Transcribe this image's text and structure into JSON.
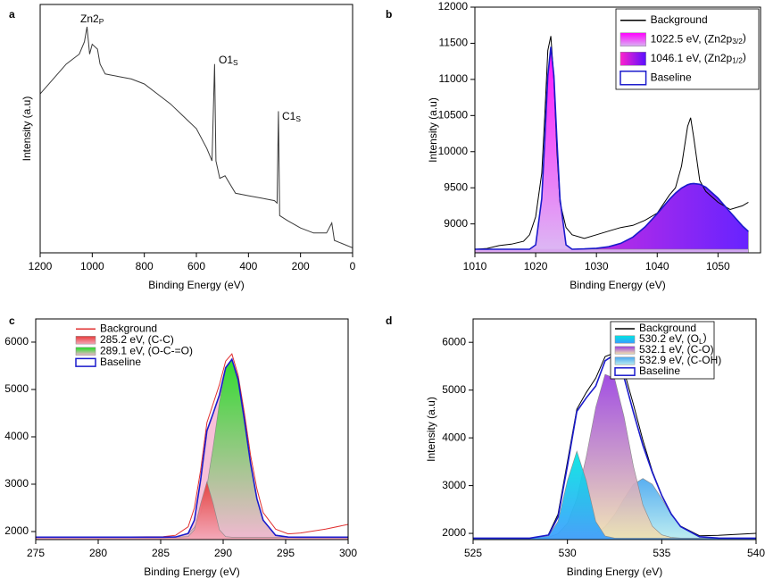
{
  "chart_data": [
    {
      "type": "line",
      "panel": "a",
      "xlabel": "Binding Energy (eV)",
      "ylabel": "Intensity (a.u)",
      "xlim": [
        1200,
        0
      ],
      "xticks": [
        1200,
        1000,
        800,
        600,
        400,
        200,
        0
      ],
      "ylim": [
        0,
        100
      ],
      "x": [
        1200,
        1150,
        1100,
        1050,
        1030,
        1020,
        1010,
        1000,
        980,
        970,
        950,
        900,
        850,
        800,
        750,
        700,
        650,
        600,
        560,
        540,
        530,
        525,
        510,
        490,
        450,
        400,
        350,
        300,
        290,
        285,
        280,
        250,
        200,
        150,
        100,
        80,
        70,
        0
      ],
      "series": [
        {
          "color": "#3a3a3a",
          "kind": "line",
          "values": [
            64,
            70,
            76,
            80,
            85,
            91,
            80,
            84,
            82,
            76,
            72,
            71,
            70,
            68,
            64,
            60,
            55,
            50,
            42,
            37,
            76,
            37,
            30,
            31,
            24,
            23,
            22,
            21,
            20,
            57,
            15,
            13,
            10,
            8,
            8,
            12,
            5,
            2
          ]
        }
      ],
      "annotations": [
        {
          "text": "Zn2",
          "sub": "P"
        },
        {
          "text": "O1",
          "sub": "S"
        },
        {
          "text": "C1",
          "sub": "S"
        }
      ]
    },
    {
      "type": "line",
      "panel": "b",
      "xlabel": "Binding Energy (eV)",
      "ylabel": "Intensity (a.u)",
      "xlim": [
        1010,
        1057
      ],
      "xticks": [
        1010,
        1020,
        1030,
        1040,
        1050
      ],
      "ylim": [
        8600,
        12000
      ],
      "yticks": [
        9000,
        9500,
        10000,
        10500,
        11000,
        11500,
        12000
      ],
      "legend_frame": true,
      "x": [
        1010,
        1012,
        1014,
        1016,
        1018,
        1019,
        1020,
        1021,
        1021.5,
        1022,
        1022.5,
        1023,
        1023.5,
        1024,
        1025,
        1026,
        1028,
        1030,
        1032,
        1034,
        1036,
        1038,
        1040,
        1042,
        1043,
        1044,
        1045,
        1045.5,
        1046,
        1047,
        1048,
        1050,
        1052,
        1054,
        1055
      ],
      "series": [
        {
          "name": "Background",
          "color": "#000000",
          "kind": "line",
          "values": [
            8650,
            8660,
            8700,
            8720,
            8760,
            8850,
            9100,
            9700,
            10500,
            11400,
            11600,
            11000,
            10000,
            9300,
            8950,
            8850,
            8800,
            8850,
            8900,
            8950,
            8980,
            9050,
            9150,
            9400,
            9500,
            9800,
            10350,
            10470,
            10200,
            9600,
            9450,
            9300,
            9200,
            9250,
            9300
          ]
        },
        {
          "name": "1022.5 eV, (Zn2p",
          "name_sub": "3/2",
          "name_tail": ")",
          "color": "#ff00ff",
          "color2": "#d9b3f2",
          "gradient": "vertical",
          "kind": "area",
          "values": [
            8650,
            8650,
            8650,
            8650,
            8650,
            8650,
            8710,
            9350,
            10160,
            11050,
            11450,
            11050,
            10160,
            9350,
            8710,
            8650,
            8650,
            8650,
            8650,
            8650,
            8650,
            8650,
            8650,
            8650,
            8650,
            8650,
            8650,
            8650,
            8650,
            8650,
            8650,
            8650,
            8650,
            8650,
            8650
          ]
        },
        {
          "name": "1046.1 eV, (Zn2p",
          "name_sub": "1/2",
          "name_tail": ")",
          "color": "#ff22cc",
          "color2": "#5a10ff",
          "gradient": "horizontal",
          "kind": "area",
          "values": [
            8650,
            8650,
            8650,
            8650,
            8650,
            8650,
            8650,
            8650,
            8650,
            8650,
            8650,
            8650,
            8650,
            8650,
            8650,
            8650,
            8655,
            8663,
            8684,
            8731,
            8818,
            8958,
            9142,
            9339,
            9426,
            9496,
            9542,
            9555,
            9560,
            9548,
            9507,
            9358,
            9162,
            8974,
            8896
          ]
        },
        {
          "name": "Baseline",
          "color": "#1a1acc",
          "kind": "outline",
          "values": [
            8650,
            8650,
            8650,
            8650,
            8650,
            8650,
            8710,
            9350,
            10160,
            11050,
            11450,
            11050,
            10160,
            9350,
            8710,
            8650,
            8655,
            8663,
            8684,
            8731,
            8818,
            8958,
            9142,
            9339,
            9426,
            9496,
            9542,
            9555,
            9560,
            9548,
            9507,
            9358,
            9162,
            8974,
            8896
          ]
        }
      ]
    },
    {
      "type": "line",
      "panel": "c",
      "xlabel": "Binding Energy (eV)",
      "ylabel": "Intensity (a.u)",
      "xlim": [
        275,
        300
      ],
      "xticks": [
        275,
        280,
        285,
        290,
        295,
        300
      ],
      "ylim": [
        1830,
        6490
      ],
      "yticks": [
        2000,
        3000,
        4000,
        5000,
        6000
      ],
      "legend_frame": false,
      "x": [
        275,
        280,
        285.2,
        286.2,
        287.2,
        287.7,
        288.2,
        288.7,
        289.2,
        289.7,
        290.2,
        290.7,
        291.2,
        291.7,
        292.2,
        292.7,
        293.2,
        294.2,
        295.2,
        296.2,
        298.2,
        300
      ],
      "series": [
        {
          "name": "Background",
          "color": "#e03030",
          "kind": "line",
          "values": [
            1880,
            1880,
            1890,
            1920,
            2100,
            2500,
            3300,
            4300,
            4700,
            5100,
            5600,
            5750,
            5300,
            4500,
            3600,
            2900,
            2400,
            2050,
            1950,
            1970,
            2050,
            2150
          ]
        },
        {
          "name": "285.2 eV, (C-C)",
          "color": "#e83a3a",
          "color2": "#f4a8b8",
          "gradient": "vertical",
          "kind": "area",
          "values": [
            1880,
            1880,
            1880,
            1880,
            1893,
            2038,
            2590,
            3050,
            2590,
            2038,
            1893,
            1880,
            1880,
            1880,
            1880,
            1880,
            1880,
            1880,
            1880,
            1880,
            1880,
            1880
          ]
        },
        {
          "name": "289.1 eV, (O-C-=O)",
          "color": "#22dd22",
          "color2": "#f0b8d0",
          "gradient": "vertical",
          "kind": "area",
          "values": [
            1880,
            1880,
            1880,
            1885,
            1948,
            2084,
            2389,
            2958,
            3788,
            4726,
            5446,
            5638,
            5205,
            4357,
            3429,
            2694,
            2242,
            1921,
            1882,
            1880,
            1880,
            1880
          ]
        },
        {
          "name": "Baseline",
          "color": "#1a1acc",
          "fill": "#f7c0d8",
          "kind": "outline",
          "values": [
            1880,
            1880,
            1880,
            1885,
            1961,
            2242,
            3099,
            4128,
            4498,
            4884,
            5459,
            5638,
            5205,
            4357,
            3429,
            2694,
            2242,
            1921,
            1882,
            1880,
            1880,
            1880
          ]
        }
      ]
    },
    {
      "type": "line",
      "panel": "d",
      "xlabel": "Binding Energy (eV)",
      "ylabel": "Intensity (a.u)",
      "xlim": [
        525,
        540
      ],
      "xticks": [
        525,
        530,
        535,
        540
      ],
      "ylim": [
        1870,
        6490
      ],
      "yticks": [
        2000,
        3000,
        4000,
        5000,
        6000
      ],
      "legend_frame": true,
      "x": [
        525,
        528,
        529,
        529.5,
        530,
        530.5,
        531,
        531.5,
        532,
        532.5,
        533,
        533.5,
        534,
        534.5,
        535,
        535.5,
        536,
        537,
        538,
        540
      ],
      "series": [
        {
          "name": "Background",
          "color": "#000000",
          "kind": "line",
          "values": [
            null,
            null,
            1980,
            2400,
            3500,
            4600,
            4950,
            5250,
            5700,
            5780,
            5400,
            4700,
            3950,
            3300,
            2800,
            2400,
            2150,
            1950,
            1960,
            2000
          ]
        },
        {
          "name": "530.2 eV, (O",
          "name_sub": "L",
          "name_tail": ")",
          "color": "#00e5e0",
          "color2": "#3a9cff",
          "gradient": "vertical",
          "kind": "area",
          "values": [
            1900,
            1900,
            1944,
            2249,
            3103,
            3720,
            3103,
            2249,
            1944,
            1902,
            1900,
            1900,
            1900,
            1900,
            1900,
            1900,
            1900,
            1900,
            1900,
            1900
          ]
        },
        {
          "name": "532.1 eV, (C-O)",
          "color": "#9a40e0",
          "color2": "#f0e2b0",
          "gradient": "vertical",
          "kind": "area",
          "values": [
            1900,
            1900,
            1921,
            1991,
            2212,
            2726,
            3605,
            4641,
            5330,
            5246,
            4441,
            3405,
            2593,
            2149,
            1970,
            1915,
            1902,
            1900,
            1900,
            1900
          ]
        },
        {
          "name": "532.9 eV, (C-OH)",
          "color": "#4aa8f0",
          "color2": "#b8ecf0",
          "gradient": "vertical",
          "kind": "area",
          "values": [
            1900,
            1900,
            1900,
            1900,
            1902,
            1908,
            1930,
            1995,
            2140,
            2394,
            2726,
            3028,
            3150,
            3028,
            2726,
            2394,
            2140,
            1930,
            1902,
            1900
          ]
        },
        {
          "name": "Baseline",
          "color": "#1a1acc",
          "kind": "outline",
          "values": [
            1900,
            1900,
            1965,
            2340,
            3417,
            4554,
            4838,
            5085,
            5614,
            5742,
            5267,
            4533,
            3843,
            3277,
            2796,
            2409,
            2142,
            1930,
            1902,
            1900
          ]
        }
      ]
    }
  ]
}
